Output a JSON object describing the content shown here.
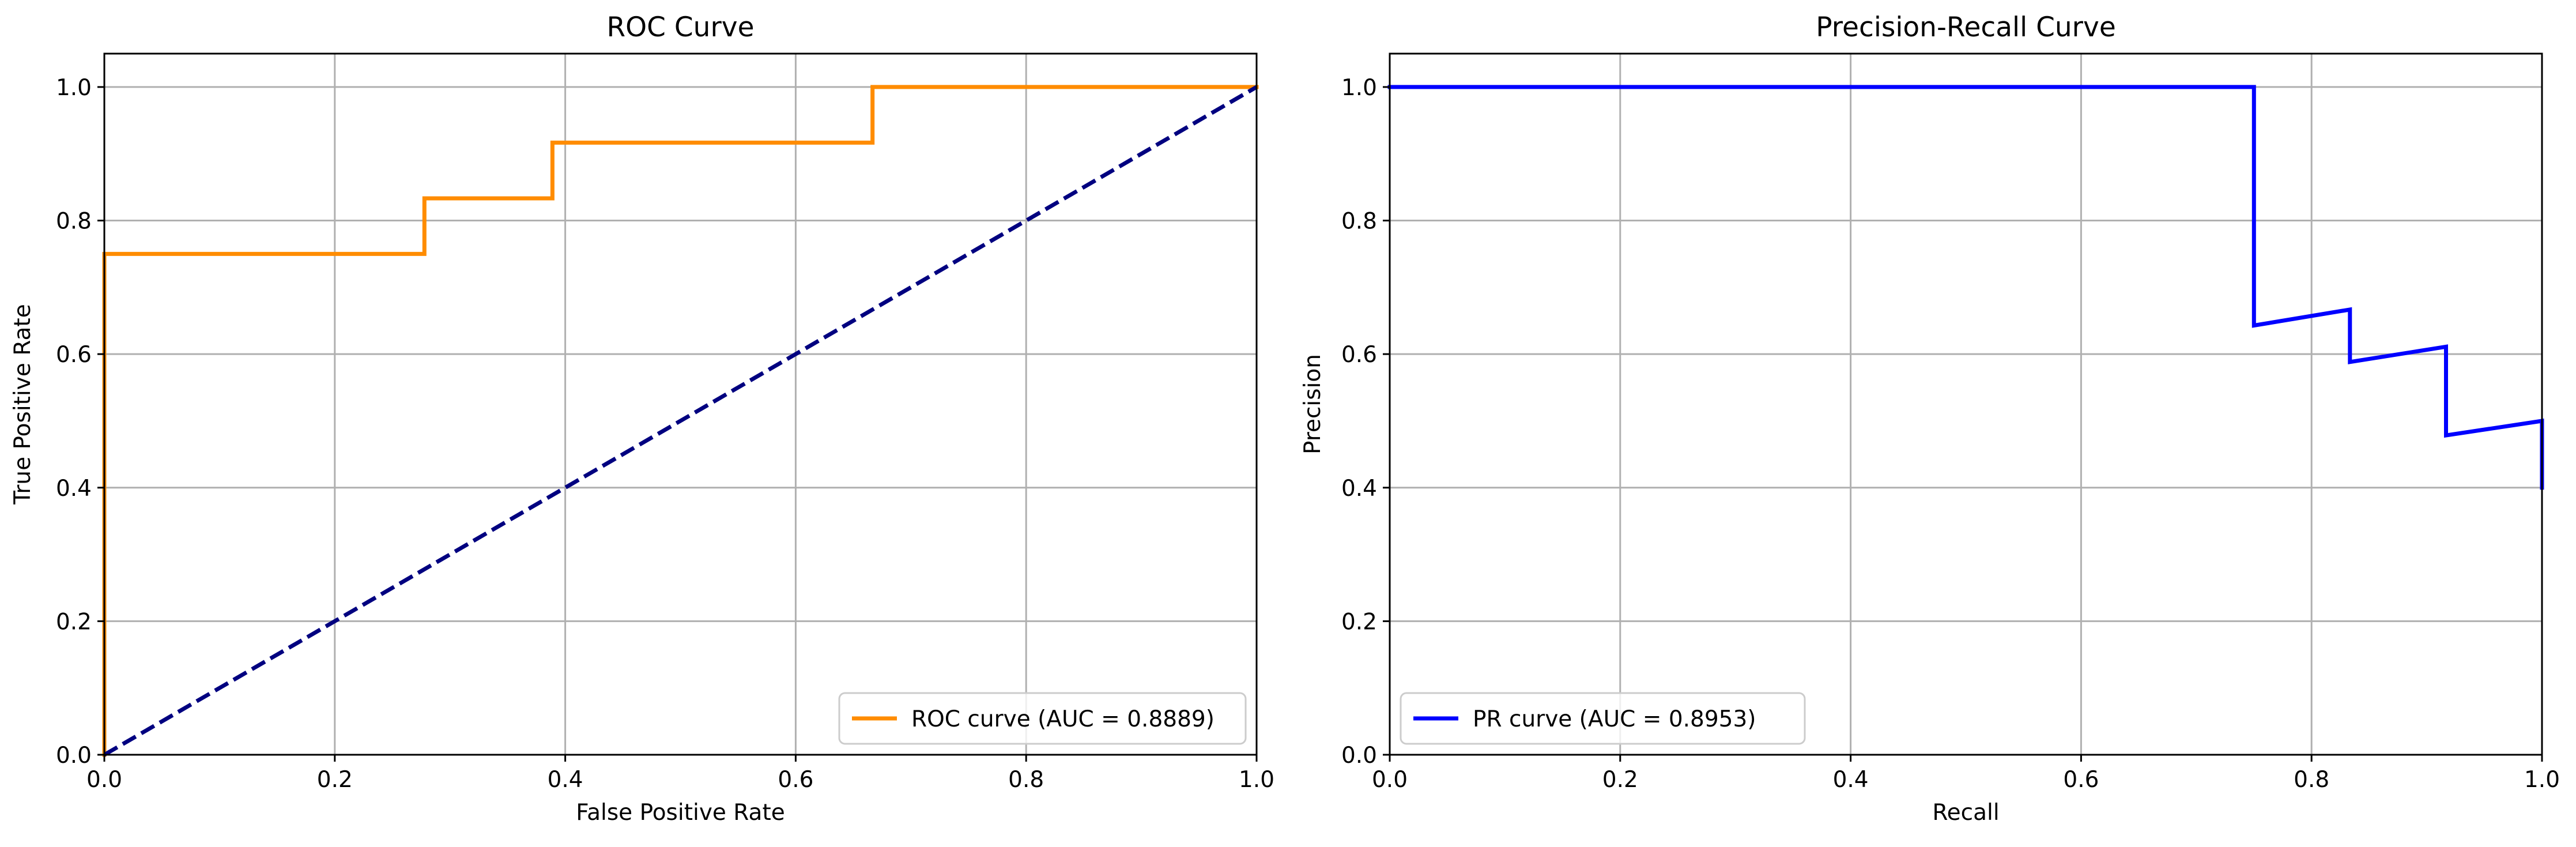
{
  "chart_data": [
    {
      "type": "line",
      "title": "ROC Curve",
      "xlabel": "False Positive Rate",
      "ylabel": "True Positive Rate",
      "xlim": [
        0,
        1.0
      ],
      "ylim": [
        0,
        1.05
      ],
      "xticks": [
        "0.0",
        "0.2",
        "0.4",
        "0.6",
        "0.8",
        "1.0"
      ],
      "yticks": [
        "0.0",
        "0.2",
        "0.4",
        "0.6",
        "0.8",
        "1.0"
      ],
      "grid": true,
      "legend_position": "lower-right",
      "series": [
        {
          "name": "ROC curve (AUC = 0.8889)",
          "color": "#ff8c00",
          "style": "solid",
          "x": [
            0,
            0,
            0,
            0.2778,
            0.2778,
            0.3889,
            0.3889,
            0.6667,
            0.6667,
            1.0
          ],
          "y": [
            0,
            0,
            0.75,
            0.75,
            0.8333,
            0.8333,
            0.9167,
            0.9167,
            1.0,
            1.0
          ]
        },
        {
          "name": "",
          "color": "#000080",
          "style": "dashed",
          "x": [
            0,
            1
          ],
          "y": [
            0,
            1
          ]
        }
      ]
    },
    {
      "type": "line",
      "title": "Precision-Recall Curve",
      "xlabel": "Recall",
      "ylabel": "Precision",
      "xlim": [
        0,
        1.0
      ],
      "ylim": [
        0,
        1.05
      ],
      "xticks": [
        "0.0",
        "0.2",
        "0.4",
        "0.6",
        "0.8",
        "1.0"
      ],
      "yticks": [
        "0.0",
        "0.2",
        "0.4",
        "0.6",
        "0.8",
        "1.0"
      ],
      "grid": true,
      "legend_position": "lower-left",
      "series": [
        {
          "name": "PR curve (AUC = 0.8953)",
          "color": "#0000ff",
          "style": "solid",
          "x": [
            0,
            0.75,
            0.75,
            0.8333,
            0.8333,
            0.9167,
            0.9167,
            1.0,
            1.0
          ],
          "y": [
            1.0,
            1.0,
            0.6429,
            0.6667,
            0.5882,
            0.6111,
            0.4783,
            0.5,
            0.4
          ]
        }
      ]
    }
  ]
}
